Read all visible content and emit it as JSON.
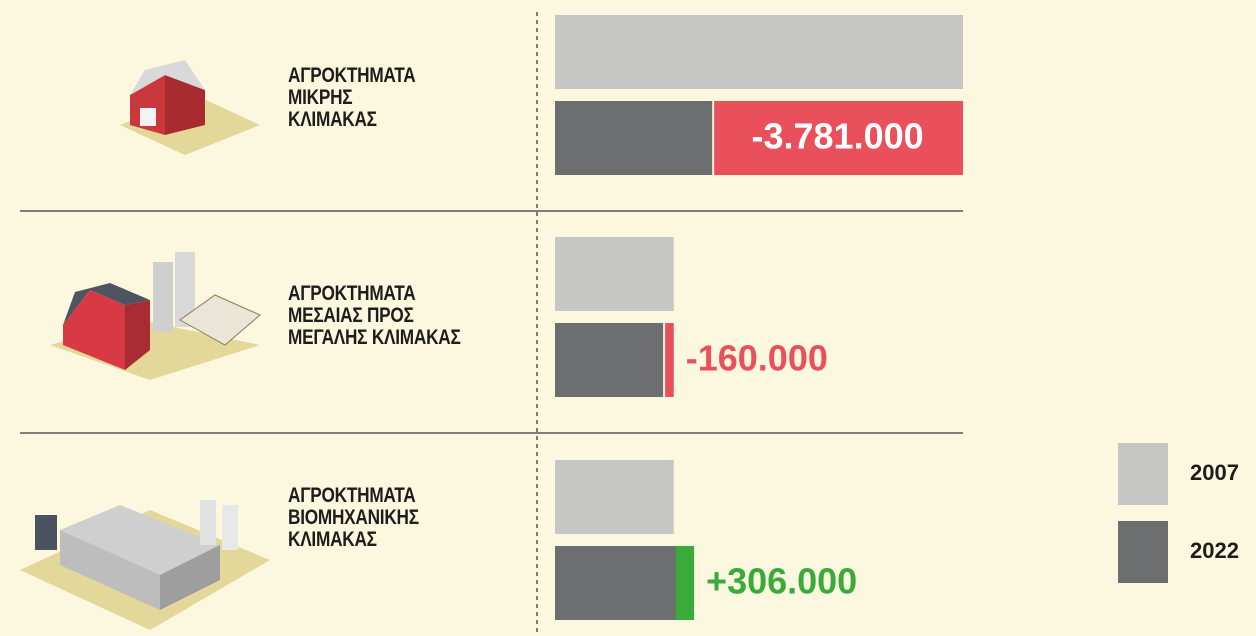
{
  "chart_data": {
    "type": "bar",
    "categories": [
      "ΑΓΡΟΚΤΗΜΑΤΑ\nΜΙΚΡΗΣ\nΚΛΙΜΑΚΑΣ",
      "ΑΓΡΟΚΤΗΜΑΤΑ\nΜΕΣΑΙΑΣ ΠΡΟΣ\nΜΕΓΑΛΗΣ ΚΛΙΜΑΚΑΣ",
      "ΑΓΡΟΚΤΗΜΑΤΑ\nΒΙΟΜΗΧΑΝΙΚΗΣ\nΚΛΙΜΑΚΑΣ"
    ],
    "series": [
      {
        "name": "2007",
        "color": "#c6c6c5",
        "values": [
          6150000,
          1790000,
          1790000
        ]
      },
      {
        "name": "2022",
        "color": "#6d6e70",
        "values": [
          2369000,
          1630000,
          2096000
        ]
      }
    ],
    "change": {
      "values": [
        -3781000,
        -160000,
        306000
      ],
      "value_labels": [
        "-3.781.000",
        "-160.000",
        "+306.000"
      ],
      "colors": {
        "decrease": "#e9505c",
        "increase": "#3aaa3a"
      }
    },
    "legend": "bottom-right"
  }
}
